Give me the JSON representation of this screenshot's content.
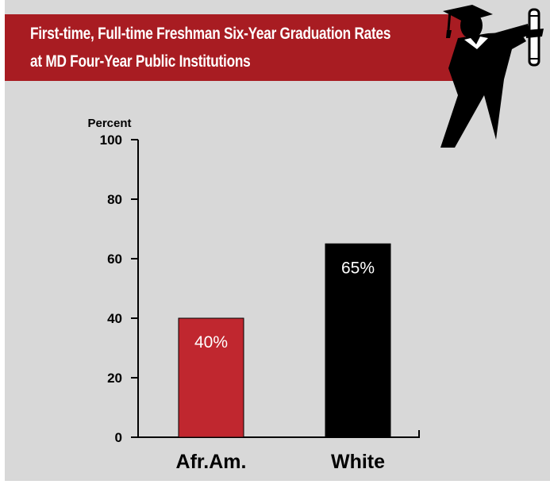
{
  "chart_data": {
    "type": "bar",
    "title_lines": [
      "First-time, Full-time Freshman Six-Year Graduation Rates",
      "at MD Four-Year Public Institutions"
    ],
    "ylabel": "Percent",
    "xlabel": "",
    "ylim": [
      0,
      100
    ],
    "yticks": [
      "0",
      "20",
      "40",
      "60",
      "80",
      "100"
    ],
    "categories": [
      "Afr.Am.",
      "White"
    ],
    "values": [
      40,
      65
    ],
    "value_labels": [
      "40%",
      "65%"
    ],
    "bar_colors": [
      "#c0272f",
      "#000000"
    ],
    "grid": false,
    "legend": "none"
  },
  "colors": {
    "title_bar": "#a81c22",
    "panel": "#d8d8d8"
  },
  "decoration": {
    "icon": "graduate-with-diploma-icon"
  }
}
